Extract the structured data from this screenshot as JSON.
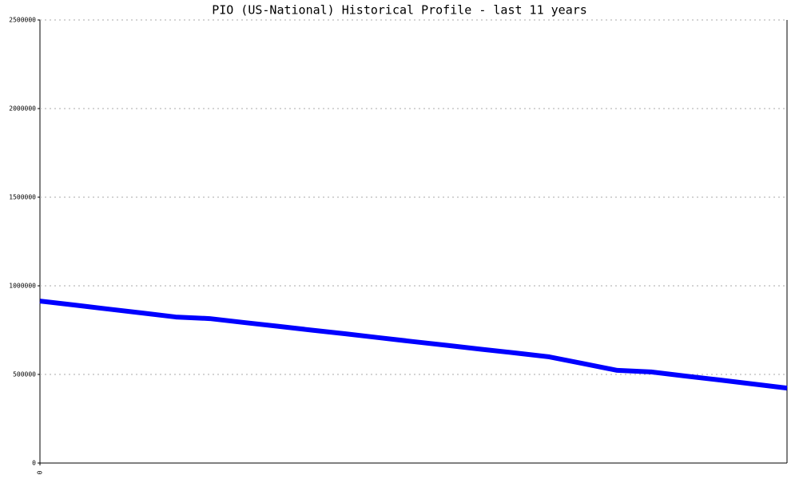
{
  "chart_data": {
    "type": "line",
    "title": "PIO (US-National) Historical Profile - last 11 years",
    "categories": [
      "0",
      null,
      null,
      null,
      null,
      null,
      null,
      null,
      null,
      null,
      null,
      null,
      null,
      null,
      null,
      null,
      null,
      null,
      null,
      null,
      null,
      null,
      null
    ],
    "series": [
      {
        "color": "#0000ff",
        "values": [
          914000,
          892000,
          869000,
          847000,
          824000,
          815000,
          793000,
          772000,
          750000,
          729000,
          707000,
          685000,
          664000,
          642000,
          621000,
          599000,
          561000,
          523000,
          514000,
          491000,
          469000,
          446000,
          423000
        ]
      }
    ],
    "ylim": [
      0,
      2500000
    ],
    "yticks": [
      0,
      500000,
      1000000,
      1500000,
      2000000,
      2500000
    ],
    "grid": true
  }
}
